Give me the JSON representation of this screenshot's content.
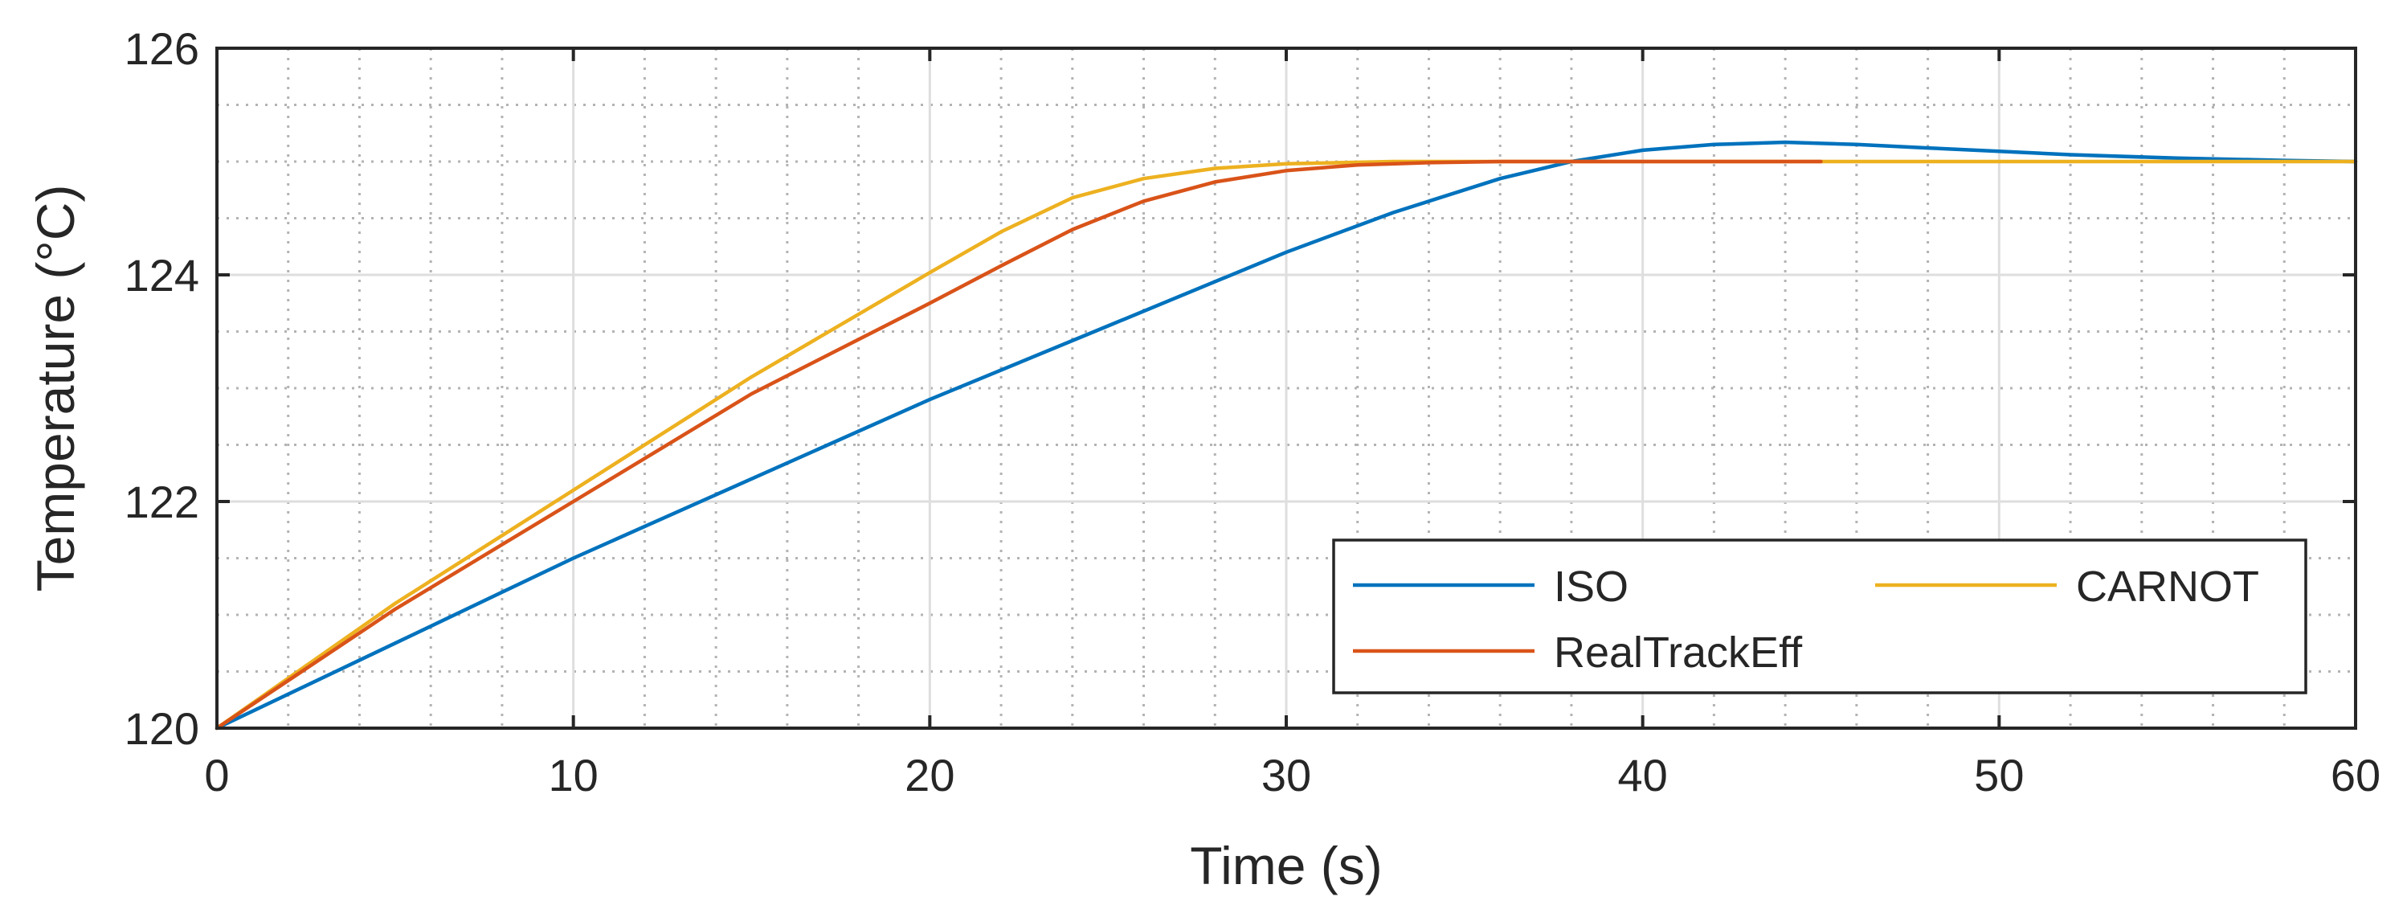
{
  "chart_data": {
    "type": "line",
    "title": "",
    "xlabel": "Time (s)",
    "ylabel": "Temperature (°C)",
    "xlim": [
      0,
      60
    ],
    "ylim": [
      120,
      126
    ],
    "xticks": [
      0,
      10,
      20,
      30,
      40,
      50,
      60
    ],
    "yticks": [
      120,
      122,
      124,
      126
    ],
    "xtick_labels": [
      "0",
      "10",
      "20",
      "30",
      "40",
      "50",
      "60"
    ],
    "ytick_labels": [
      "120",
      "122",
      "124",
      "126"
    ],
    "grid": true,
    "minor_grid": true,
    "legend": {
      "location": "bottom-right",
      "columns": 2
    },
    "series": [
      {
        "name": "ISO",
        "color": "#0072BD",
        "x": [
          0,
          5,
          10,
          15,
          20,
          25,
          30,
          33,
          36,
          38,
          40,
          42,
          44,
          46,
          48,
          50,
          52,
          55,
          58,
          60
        ],
        "y": [
          120.0,
          120.75,
          121.5,
          122.2,
          122.9,
          123.55,
          124.2,
          124.55,
          124.85,
          125.0,
          125.1,
          125.15,
          125.17,
          125.15,
          125.12,
          125.09,
          125.06,
          125.03,
          125.01,
          125.0
        ]
      },
      {
        "name": "CARNOT",
        "color": "#EDB120",
        "x": [
          0,
          5,
          10,
          15,
          20,
          22,
          24,
          26,
          28,
          30,
          33,
          36,
          40,
          50,
          60
        ],
        "y": [
          120.0,
          121.1,
          122.1,
          123.1,
          124.02,
          124.38,
          124.68,
          124.85,
          124.94,
          124.98,
          125.0,
          125.0,
          125.0,
          125.0,
          125.0
        ]
      },
      {
        "name": "RealTrackEff",
        "color": "#D95319",
        "x": [
          0,
          5,
          10,
          15,
          20,
          22,
          24,
          26,
          28,
          30,
          32,
          34,
          36,
          40,
          45
        ],
        "y": [
          120.0,
          121.05,
          122.0,
          122.95,
          123.75,
          124.08,
          124.4,
          124.65,
          124.82,
          124.92,
          124.97,
          124.99,
          125.0,
          125.0,
          125.0
        ]
      }
    ]
  }
}
